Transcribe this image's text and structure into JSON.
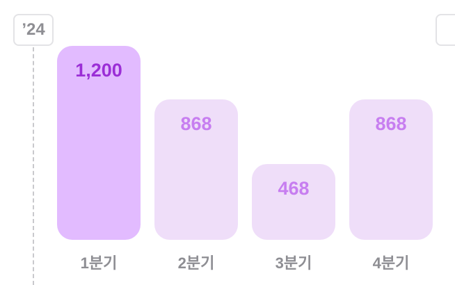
{
  "year_label": "’24",
  "chart_data": {
    "type": "bar",
    "categories": [
      "1분기",
      "2분기",
      "3분기",
      "4분기"
    ],
    "values": [
      1200,
      868,
      468,
      868
    ],
    "value_labels": [
      "1,200",
      "868",
      "468",
      "868"
    ],
    "highlighted_index": 0,
    "ylim": [
      0,
      1200
    ],
    "grid": false,
    "colors": {
      "highlight_bar": "#e2bbff",
      "bar": "#efdef9",
      "highlight_text": "#9b2ed6",
      "text": "#c77ef0",
      "category_text": "#8e8e93"
    }
  }
}
